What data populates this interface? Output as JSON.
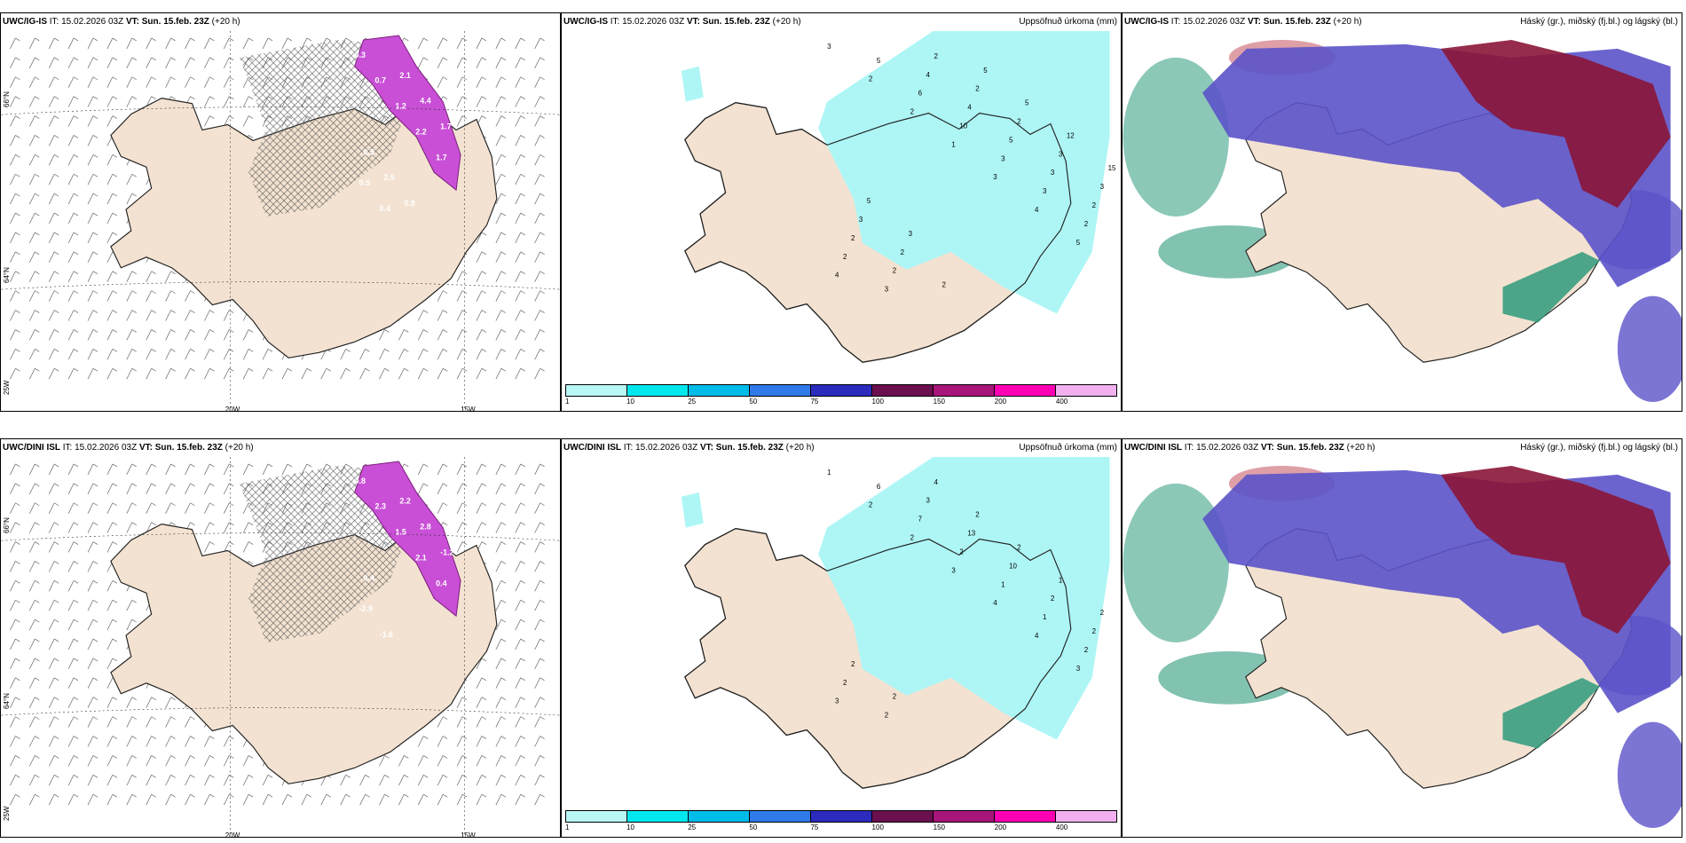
{
  "panels": [
    {
      "model": "UWC/IG-IS",
      "it_label": "IT:",
      "it_value": "15.02.2026 03Z",
      "vt_label": "VT:",
      "vt_value": "Sun. 15.feb. 23Z",
      "lead": "(+20 h)",
      "right_title": ""
    },
    {
      "model": "UWC/IG-IS",
      "it_label": "IT:",
      "it_value": "15.02.2026 03Z",
      "vt_label": "VT:",
      "vt_value": "Sun. 15.feb. 23Z",
      "lead": "(+20 h)",
      "right_title": "Uppsöfnuð úrkoma (mm)"
    },
    {
      "model": "UWC/IG-IS",
      "it_label": "IT:",
      "it_value": "15.02.2026 03Z",
      "vt_label": "VT:",
      "vt_value": "Sun. 15.feb. 23Z",
      "lead": "(+20 h)",
      "right_title": "Háský (gr.), miðský (fj.bl.) og lágský (bl.)"
    },
    {
      "model": "UWC/DINI ISL",
      "it_label": "IT:",
      "it_value": "15.02.2026 03Z",
      "vt_label": "VT:",
      "vt_value": "Sun. 15.feb. 23Z",
      "lead": "(+20 h)",
      "right_title": ""
    },
    {
      "model": "UWC/DINI ISL",
      "it_label": "IT:",
      "it_value": "15.02.2026 03Z",
      "vt_label": "VT:",
      "vt_value": "Sun. 15.feb. 23Z",
      "lead": "(+20 h)",
      "right_title": "Uppsöfnuð úrkoma (mm)"
    },
    {
      "model": "UWC/DINI ISL",
      "it_label": "IT:",
      "it_value": "15.02.2026 03Z",
      "vt_label": "VT:",
      "vt_value": "Sun. 15.feb. 23Z",
      "lead": "(+20 h)",
      "right_title": "Háský (gr.), miðský (fj.bl.) og lágský (bl.)"
    }
  ],
  "axis_labels": {
    "lat_66": "66°N",
    "lat_64": "64°N",
    "lat_25w": "25W",
    "lon_20w": "20W",
    "lon_15w": "15W"
  },
  "colorbar": {
    "colors": [
      "#b8f7f5",
      "#00e8ee",
      "#00bce8",
      "#2f7ae8",
      "#2b2bbd",
      "#6b0f4f",
      "#a8157a",
      "#ff00b4",
      "#f2b0f0"
    ],
    "ticks": [
      "1",
      "10",
      "25",
      "50",
      "75",
      "100",
      "150",
      "200",
      "400"
    ]
  },
  "precip_labels_top": [
    "3",
    "2",
    "2",
    "1",
    "3",
    "4",
    "5",
    "4",
    "5",
    "6",
    "10",
    "3",
    "3",
    "2",
    "2",
    "3",
    "4",
    "4",
    "5",
    "3",
    "2",
    "2",
    "2",
    "2",
    "2",
    "2",
    "3",
    "3",
    "3",
    "2",
    "2",
    "5",
    "5",
    "12",
    "15",
    "5",
    "3"
  ],
  "precip_labels_bottom": [
    "1",
    "2",
    "2",
    "3",
    "4",
    "4",
    "3",
    "3",
    "6",
    "7",
    "2",
    "1",
    "1",
    "2",
    "2",
    "2",
    "3",
    "13",
    "10",
    "2",
    "2",
    "2",
    "2",
    "4",
    "2",
    "2",
    "1",
    "2"
  ],
  "snow_labels_top": [
    "0.3",
    "0.7",
    "1.2",
    "2.2",
    "1.7",
    "0.5",
    "0.4",
    "2.1",
    "4.4",
    "1.7",
    "0.5",
    "2.5",
    "0.9",
    "0.5"
  ],
  "snow_labels_bottom": [
    "0.8",
    "2.3",
    "1.5",
    "2.1",
    "0.4",
    "-2.9",
    "-1.6",
    "2.2",
    "2.8",
    "-1.2",
    "0.4"
  ],
  "colors": {
    "land": "#f3e2d1",
    "snow": "#c84fd6",
    "snow_dark": "#7a1f7a",
    "precip": "#aef6f6",
    "cloud_high": "#8b1538",
    "cloud_mid": "#5b53c9",
    "cloud_low": "#2e9a7c"
  }
}
